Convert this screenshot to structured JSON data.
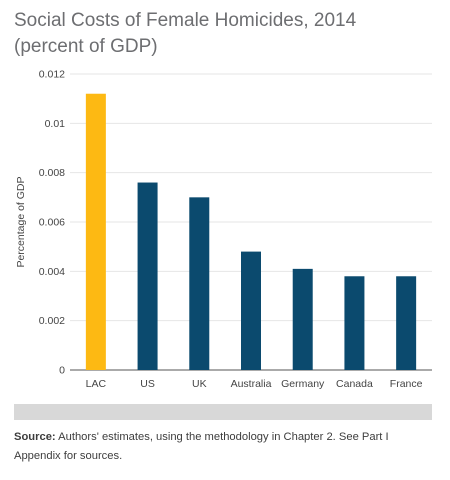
{
  "chart_data": {
    "type": "bar",
    "title_line1": "Social Costs of Female Homicides, 2014",
    "title_line2": "(percent of GDP)",
    "ylabel": "Percentage of GDP",
    "xlabel": "",
    "categories": [
      "LAC",
      "US",
      "UK",
      "Australia",
      "Germany",
      "Canada",
      "France"
    ],
    "values": [
      0.0112,
      0.0076,
      0.007,
      0.0048,
      0.0041,
      0.0038,
      0.0038
    ],
    "ylim": [
      0,
      0.012
    ],
    "yticks": [
      0,
      0.002,
      0.004,
      0.006,
      0.008,
      0.01,
      0.012
    ],
    "ytick_labels": [
      "0",
      "0.002",
      "0.004",
      "0.006",
      "0.008",
      "0.01",
      "0.012"
    ],
    "grid": true,
    "colors": {
      "highlight": "#fdb913",
      "default": "#0b4a6e",
      "grid": "#e6e6e6",
      "axis": "#555555"
    },
    "highlight_category": "LAC"
  },
  "source": {
    "label": "Source:",
    "text": " Authors' estimates, using the methodology in Chapter 2. See Part I Appendix for sources."
  }
}
